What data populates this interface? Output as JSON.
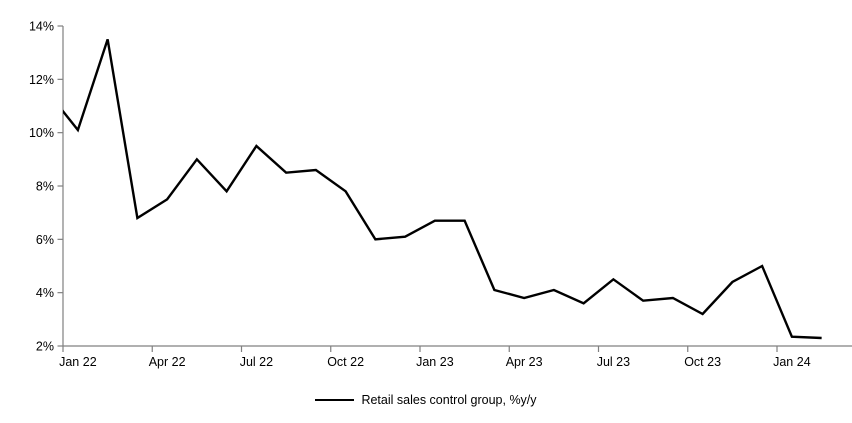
{
  "chart_data": {
    "type": "line",
    "title": "",
    "xlabel": "",
    "ylabel": "",
    "x": [
      "Dec 21",
      "Jan 22",
      "Feb 22",
      "Mar 22",
      "Apr 22",
      "May 22",
      "Jun 22",
      "Jul 22",
      "Aug 22",
      "Sep 22",
      "Oct 22",
      "Nov 22",
      "Dec 22",
      "Jan 23",
      "Feb 23",
      "Mar 23",
      "Apr 23",
      "May 23",
      "Jun 23",
      "Jul 23",
      "Aug 23",
      "Sep 23",
      "Oct 23",
      "Nov 23",
      "Dec 23",
      "Jan 24",
      "Feb 24"
    ],
    "series": [
      {
        "name": "Retail sales control group, %y/y",
        "values": [
          11.5,
          10.1,
          13.5,
          6.8,
          7.5,
          9.0,
          7.8,
          9.5,
          8.5,
          8.6,
          7.8,
          6.0,
          6.1,
          6.7,
          6.7,
          4.1,
          3.8,
          4.1,
          3.6,
          4.5,
          3.7,
          3.8,
          3.2,
          4.4,
          5.0,
          2.35,
          2.3
        ],
        "color": "#000000"
      }
    ],
    "first_point_clipped_at_left_axis": true,
    "ylim": [
      2,
      14
    ],
    "yticks": [
      2,
      4,
      6,
      8,
      10,
      12,
      14
    ],
    "ytick_suffix": "%",
    "xticks": [
      {
        "label": "Jan 22",
        "i": 1
      },
      {
        "label": "Apr 22",
        "i": 4
      },
      {
        "label": "Jul 22",
        "i": 7
      },
      {
        "label": "Oct 22",
        "i": 10
      },
      {
        "label": "Jan 23",
        "i": 13
      },
      {
        "label": "Apr 23",
        "i": 16
      },
      {
        "label": "Jul 23",
        "i": 19
      },
      {
        "label": "Oct 23",
        "i": 22
      },
      {
        "label": "Jan 24",
        "i": 25
      }
    ],
    "grid": false,
    "axis_color": "#808080",
    "background": "#ffffff",
    "legend": {
      "position": "bottom-center",
      "entries": [
        {
          "label": "Retail sales control group, %y/y",
          "color": "#000000"
        }
      ]
    }
  }
}
